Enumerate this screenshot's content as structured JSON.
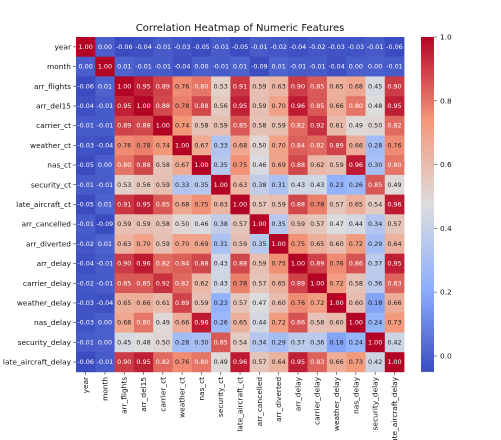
{
  "chart_data": {
    "type": "heatmap",
    "title": "Correlation Heatmap of Numeric Features",
    "labels": [
      "year",
      "month",
      "arr_flights",
      "arr_del15",
      "carrier_ct",
      "weather_ct",
      "nas_ct",
      "security_ct",
      "late_aircraft_ct",
      "arr_cancelled",
      "arr_diverted",
      "arr_delay",
      "carrier_delay",
      "weather_delay",
      "nas_delay",
      "security_delay",
      "late_aircraft_delay"
    ],
    "colormap": "coolwarm",
    "vmin": -0.05,
    "vmax": 1.0,
    "colorbar_ticks": [
      "1.0",
      "0.8",
      "0.6",
      "0.4",
      "0.2",
      "0.0"
    ],
    "matrix": [
      [
        "1.00",
        "0.00",
        "-0.06",
        "-0.04",
        "-0.01",
        "-0.03",
        "-0.05",
        "-0.01",
        "-0.05",
        "-0.01",
        "-0.02",
        "-0.04",
        "-0.02",
        "-0.03",
        "-0.03",
        "-0.01",
        "-0.06"
      ],
      [
        "0.00",
        "1.00",
        "0.01",
        "-0.01",
        "-0.01",
        "-0.04",
        "0.00",
        "-0.01",
        "0.01",
        "-0.09",
        "0.01",
        "-0.01",
        "-0.01",
        "-0.04",
        "0.00",
        "0.00",
        "-0.01"
      ],
      [
        "-0.06",
        "0.01",
        "1.00",
        "0.95",
        "0.89",
        "0.76",
        "0.80",
        "0.53",
        "0.91",
        "0.59",
        "0.63",
        "0.90",
        "0.85",
        "0.65",
        "0.68",
        "0.45",
        "0.90"
      ],
      [
        "-0.04",
        "-0.01",
        "0.95",
        "1.00",
        "0.88",
        "0.78",
        "0.88",
        "0.56",
        "0.95",
        "0.59",
        "0.70",
        "0.96",
        "0.85",
        "0.66",
        "0.80",
        "0.48",
        "0.95"
      ],
      [
        "-0.01",
        "-0.01",
        "0.89",
        "0.88",
        "1.00",
        "0.74",
        "0.58",
        "0.59",
        "0.85",
        "0.58",
        "0.59",
        "0.82",
        "0.92",
        "0.61",
        "0.49",
        "0.50",
        "0.82"
      ],
      [
        "-0.03",
        "-0.04",
        "0.76",
        "0.78",
        "0.74",
        "1.00",
        "0.67",
        "0.33",
        "0.68",
        "0.50",
        "0.70",
        "0.84",
        "0.82",
        "0.89",
        "0.66",
        "0.28",
        "0.76"
      ],
      [
        "-0.05",
        "0.00",
        "0.80",
        "0.88",
        "0.58",
        "0.67",
        "1.00",
        "0.35",
        "0.75",
        "0.46",
        "0.69",
        "0.88",
        "0.62",
        "0.59",
        "0.96",
        "0.30",
        "0.80"
      ],
      [
        "-0.01",
        "-0.01",
        "0.53",
        "0.56",
        "0.59",
        "0.33",
        "0.35",
        "1.00",
        "0.63",
        "0.38",
        "0.31",
        "0.43",
        "0.43",
        "0.23",
        "0.26",
        "0.85",
        "0.49"
      ],
      [
        "-0.05",
        "0.01",
        "0.91",
        "0.95",
        "0.85",
        "0.68",
        "0.75",
        "0.63",
        "1.00",
        "0.57",
        "0.59",
        "0.88",
        "0.78",
        "0.57",
        "0.65",
        "0.54",
        "0.96"
      ],
      [
        "-0.01",
        "-0.09",
        "0.59",
        "0.59",
        "0.58",
        "0.50",
        "0.46",
        "0.38",
        "0.57",
        "1.00",
        "0.35",
        "0.59",
        "0.57",
        "0.47",
        "0.44",
        "0.34",
        "0.57"
      ],
      [
        "-0.02",
        "0.01",
        "0.63",
        "0.70",
        "0.59",
        "0.70",
        "0.69",
        "0.31",
        "0.59",
        "0.35",
        "1.00",
        "0.75",
        "0.65",
        "0.60",
        "0.72",
        "0.29",
        "0.64"
      ],
      [
        "-0.04",
        "-0.01",
        "0.90",
        "0.96",
        "0.82",
        "0.84",
        "0.88",
        "0.43",
        "0.88",
        "0.59",
        "0.75",
        "1.00",
        "0.89",
        "0.76",
        "0.86",
        "0.37",
        "0.95"
      ],
      [
        "-0.02",
        "-0.01",
        "0.85",
        "0.85",
        "0.92",
        "0.82",
        "0.62",
        "0.43",
        "0.78",
        "0.57",
        "0.65",
        "0.89",
        "1.00",
        "0.72",
        "0.58",
        "0.36",
        "0.83"
      ],
      [
        "-0.03",
        "-0.04",
        "0.65",
        "0.66",
        "0.61",
        "0.89",
        "0.59",
        "0.23",
        "0.57",
        "0.47",
        "0.60",
        "0.76",
        "0.72",
        "1.00",
        "0.60",
        "0.18",
        "0.66"
      ],
      [
        "-0.03",
        "0.00",
        "0.68",
        "0.80",
        "0.49",
        "0.66",
        "0.96",
        "0.26",
        "0.65",
        "0.44",
        "0.72",
        "0.86",
        "0.58",
        "0.60",
        "1.00",
        "0.24",
        "0.73"
      ],
      [
        "-0.01",
        "0.00",
        "0.45",
        "0.48",
        "0.50",
        "0.28",
        "0.30",
        "0.85",
        "0.54",
        "0.34",
        "0.29",
        "0.37",
        "0.36",
        "0.18",
        "0.24",
        "1.00",
        "0.42"
      ],
      [
        "-0.06",
        "-0.01",
        "0.90",
        "0.95",
        "0.82",
        "0.76",
        "0.80",
        "0.49",
        "0.96",
        "0.57",
        "0.64",
        "0.95",
        "0.83",
        "0.66",
        "0.73",
        "0.42",
        "1.00"
      ]
    ]
  }
}
